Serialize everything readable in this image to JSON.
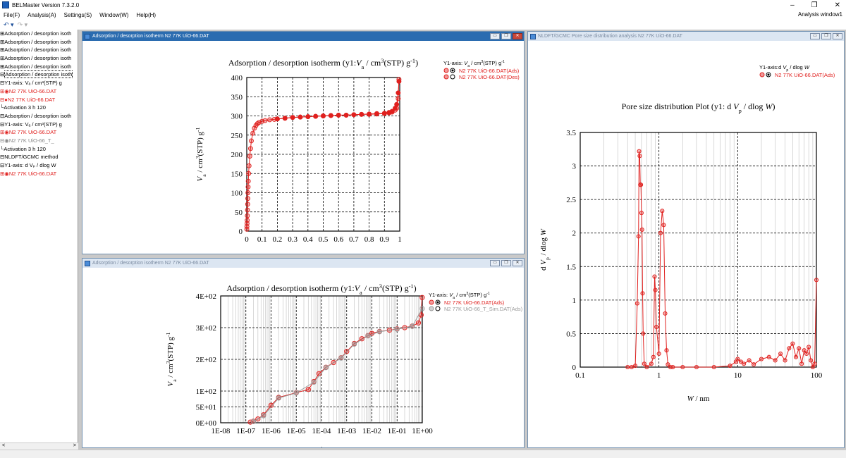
{
  "app": {
    "title": "BELMaster Version 7.3.2.0",
    "window_label": "Analysis window1",
    "window_controls": [
      "–",
      "❐",
      "✕"
    ]
  },
  "menu": [
    "File(F)",
    "Analysis(A)",
    "Settings(S)",
    "Window(W)",
    "Help(H)"
  ],
  "toolbar": {
    "undo": "↶ ▾",
    "redo": "↷ ▾"
  },
  "tree": [
    {
      "t": "Adsorption / desorption isoth",
      "pre": "⊞",
      "c": ""
    },
    {
      "t": "Adsorption / desorption isoth",
      "pre": "⊞",
      "c": ""
    },
    {
      "t": "Adsorption / desorption isoth",
      "pre": "⊞",
      "c": ""
    },
    {
      "t": "Adsorption / desorption isoth",
      "pre": "⊞",
      "c": ""
    },
    {
      "t": "Adsorption / desorption isoth",
      "pre": "⊞",
      "c": ""
    },
    {
      "t": "Adsorption / desorption isoth",
      "pre": "⊟",
      "c": "selected"
    },
    {
      "t": "Y1-axis: Vₐ / cm³(STP) g",
      "pre": " ⊟",
      "c": ""
    },
    {
      "t": "N2 77K UiO-66.DAT",
      "pre": "   ⊞◉",
      "c": "red"
    },
    {
      "t": "N2 77K UiO-66.DAT",
      "pre": "   ⊟●",
      "c": "red"
    },
    {
      "t": "Activation 3 h 120",
      "pre": "     └",
      "c": ""
    },
    {
      "t": "Adsorption / desorption isoth",
      "pre": "⊟",
      "c": ""
    },
    {
      "t": "Y1-axis: Vₐ / cm³(STP) g",
      "pre": " ⊟",
      "c": ""
    },
    {
      "t": "N2 77K UiO-66.DAT",
      "pre": "   ⊞◉",
      "c": "red"
    },
    {
      "t": "N2 77K UiO-66_T_",
      "pre": "   ⊟◉",
      "c": "gray"
    },
    {
      "t": "Activation 3 h 120",
      "pre": "     └",
      "c": ""
    },
    {
      "t": "NLDFT/GCMC method",
      "pre": "⊟",
      "c": ""
    },
    {
      "t": "Y1-axis: d Vₚ / dlog W",
      "pre": " ⊟",
      "c": ""
    },
    {
      "t": "N2 77K UiO-66.DAT",
      "pre": "   ⊞◉",
      "c": "red"
    }
  ],
  "tree_scroll": {
    "left": "<",
    "right": ">"
  },
  "windows": {
    "w1": {
      "title": "Adsorption / desorption isotherm N2 77K UiO-66.DAT"
    },
    "w2": {
      "title": "Adsorption / desorption isotherm N2 77K UiO-66.DAT"
    },
    "w3": {
      "title": "NLDFT/GCMC Pore size distribution analysis N2 77K UiO-66.DAT"
    },
    "buttons": [
      "▭",
      "❐",
      "✕"
    ]
  },
  "colors": {
    "series_red": "#e0201e",
    "series_gray": "#9a9a9a",
    "title_active": "#2b6cb0"
  },
  "chart_data": [
    {
      "type": "scatter",
      "title": "Adsorption / desorption isotherm (y1: Va / cm3(STP) g-1)",
      "title_parts": [
        "Adsorption / desorption isotherm (y1:",
        "V",
        "a",
        " / cm",
        "3",
        "(STP) g",
        "-1",
        ")"
      ],
      "xlabel": "p / p0",
      "xlabel_parts": [
        "p",
        " /",
        "p",
        "0"
      ],
      "ylabel": "Va / cm3(STP) g-1",
      "ylabel_parts": [
        "V",
        "a",
        " / cm",
        "3",
        "(STP) g",
        "-1"
      ],
      "xlim": [
        0,
        1
      ],
      "ylim": [
        0,
        400
      ],
      "grid": true,
      "legend": "top-right",
      "x_ticks": [
        "0",
        "0.1",
        "0.2",
        "0.3",
        "0.4",
        "0.5",
        "0.6",
        "0.7",
        "0.8",
        "0.9",
        "1"
      ],
      "y_ticks": [
        "0",
        "50",
        "100",
        "150",
        "200",
        "250",
        "300",
        "350",
        "400"
      ],
      "legend_title": [
        "Y1-axis: ",
        "V",
        "a",
        " / cm",
        "3",
        "(STP) g",
        "-1"
      ],
      "series": [
        {
          "name": "N2 77K UiO-66.DAT(Ads)",
          "marker": "open",
          "x": [
            0.0005,
            0.001,
            0.002,
            0.003,
            0.004,
            0.005,
            0.006,
            0.007,
            0.008,
            0.009,
            0.01,
            0.012,
            0.015,
            0.02,
            0.025,
            0.03,
            0.04,
            0.05,
            0.06,
            0.07,
            0.08,
            0.1,
            0.12,
            0.15,
            0.18,
            0.2,
            0.25,
            0.3,
            0.35,
            0.4,
            0.45,
            0.5,
            0.55,
            0.6,
            0.65,
            0.7,
            0.75,
            0.8,
            0.85,
            0.9,
            0.93,
            0.95,
            0.97,
            0.98,
            0.99,
            0.995
          ],
          "y": [
            5,
            12,
            20,
            28,
            40,
            55,
            70,
            85,
            100,
            115,
            130,
            150,
            170,
            195,
            215,
            235,
            255,
            268,
            275,
            280,
            283,
            286,
            288,
            290,
            291,
            292,
            294,
            296,
            297,
            298,
            299,
            300,
            301,
            302,
            302,
            303,
            304,
            304,
            305,
            306,
            308,
            310,
            315,
            320,
            345,
            395
          ]
        },
        {
          "name": "N2 77K UiO-66.DAT(Des)",
          "marker": "filled",
          "x": [
            0.995,
            0.99,
            0.98,
            0.97,
            0.95,
            0.93,
            0.9,
            0.85,
            0.8,
            0.75,
            0.7,
            0.65,
            0.6,
            0.55,
            0.5,
            0.45,
            0.4,
            0.35,
            0.3,
            0.25,
            0.2
          ],
          "y": [
            390,
            360,
            330,
            320,
            312,
            309,
            307,
            306,
            305,
            304,
            303,
            302,
            302,
            301,
            300,
            299,
            298,
            297,
            296,
            294,
            292
          ]
        }
      ]
    },
    {
      "type": "scatter",
      "title": "Adsorption / desorption isotherm (y1: Va / cm3(STP) g-1)",
      "title_parts": [
        "Adsorption / desorption isotherm (y1:",
        "V",
        "a",
        " / cm",
        "3",
        "(STP) g",
        "-1",
        ")"
      ],
      "xlabel": "p / p0",
      "xlabel_parts": [
        "p",
        " /",
        "p",
        "0"
      ],
      "ylabel": "Va / cm3(STP) g-1",
      "ylabel_parts": [
        "V",
        "a",
        " / cm",
        "3",
        "(STP) g",
        "-1"
      ],
      "x_scale": "log",
      "x_exp_range": [
        -8,
        0
      ],
      "ylim": [
        0,
        400
      ],
      "grid": true,
      "legend": "top-right",
      "x_ticks": [
        "1E-08",
        "1E-07",
        "1E-06",
        "1E-05",
        "1E-04",
        "1E-03",
        "1E-02",
        "1E-01",
        "1E+00"
      ],
      "y_ticks": [
        "0E+00",
        "5E+01",
        "1E+02",
        "2E+02",
        "3E+02",
        "4E+02"
      ],
      "legend_title": [
        "Y1-axis: ",
        "V",
        "a",
        " / cm",
        "3",
        "(STP) g",
        "-1"
      ],
      "series": [
        {
          "name": "N2 77K UiO-66.DAT(Ads)",
          "color": "red",
          "x": [
            1.5e-07,
            2e-07,
            3e-07,
            5e-07,
            1e-06,
            2e-06,
            1e-05,
            3e-05,
            5e-05,
            8e-05,
            0.00015,
            0.0003,
            0.0006,
            0.001,
            0.002,
            0.004,
            0.007,
            0.01,
            0.02,
            0.05,
            0.1,
            0.2,
            0.4,
            0.7,
            0.9,
            0.99
          ],
          "y": [
            2,
            5,
            12,
            25,
            55,
            80,
            95,
            105,
            130,
            155,
            175,
            190,
            205,
            225,
            250,
            265,
            275,
            282,
            288,
            292,
            296,
            300,
            305,
            315,
            340,
            395
          ]
        },
        {
          "name": "N2 77K UiO-66_T_Sim.DAT(Ads)",
          "color": "gray",
          "x": [
            2e-07,
            5e-07,
            2e-06,
            1e-05,
            5e-05,
            0.00015,
            0.0006,
            0.002,
            0.007,
            0.02,
            0.1,
            0.4,
            0.99
          ],
          "y": [
            4,
            22,
            78,
            94,
            128,
            174,
            204,
            248,
            274,
            287,
            295,
            304,
            360
          ]
        }
      ]
    },
    {
      "type": "line",
      "title": "Pore size distribution Plot (y1: d Vp / dlog W)",
      "title_parts": [
        "Pore size distribution Plot (y1: d ",
        "V",
        "p",
        " / dlog ",
        "W",
        ")"
      ],
      "xlabel": "W / nm",
      "xlabel_parts": [
        "W",
        " / nm"
      ],
      "ylabel": "d Vp / dlog W",
      "ylabel_parts": [
        "d ",
        "V",
        "p",
        " / dlog ",
        "W"
      ],
      "x_scale": "log",
      "x_exp_range": [
        -1,
        2
      ],
      "ylim": [
        0,
        3.5
      ],
      "grid": true,
      "legend": "top-right",
      "x_ticks": [
        "0.1",
        "1",
        "10",
        "100"
      ],
      "y_ticks": [
        "0",
        "0.5",
        "1",
        "1.5",
        "2",
        "2.5",
        "3",
        "3.5"
      ],
      "legend_title": [
        "Y1-axis:d ",
        "V",
        "p",
        " / dlog ",
        "W"
      ],
      "series": [
        {
          "name": "N2 77K UiO-66.DAT(Ads)",
          "x": [
            0.4,
            0.45,
            0.5,
            0.53,
            0.55,
            0.56,
            0.57,
            0.58,
            0.59,
            0.6,
            0.61,
            0.62,
            0.63,
            0.65,
            0.7,
            0.8,
            0.85,
            0.88,
            0.9,
            0.93,
            1.0,
            1.05,
            1.1,
            1.15,
            1.2,
            1.25,
            1.3,
            1.4,
            1.5,
            2,
            3,
            5,
            8,
            9.5,
            10,
            11,
            12,
            14,
            16,
            20,
            25,
            30,
            35,
            40,
            45,
            50,
            55,
            60,
            65,
            70,
            75,
            80,
            85,
            90,
            95,
            100
          ],
          "y": [
            0,
            0,
            0.02,
            0.95,
            1.95,
            3.22,
            3.15,
            2.72,
            2.72,
            2.3,
            2.05,
            1.1,
            0.5,
            0.05,
            0.0,
            0.05,
            0.15,
            1.35,
            1.15,
            0.6,
            0.2,
            2.0,
            2.33,
            2.12,
            0.8,
            0.25,
            0.04,
            0.0,
            0.0,
            0.0,
            0.0,
            0.0,
            0.02,
            0.08,
            0.12,
            0.08,
            0.05,
            0.1,
            0.04,
            0.12,
            0.15,
            0.1,
            0.2,
            0.1,
            0.28,
            0.35,
            0.15,
            0.28,
            0.05,
            0.25,
            0.2,
            0.3,
            0.1,
            0.0,
            0.05,
            1.3
          ]
        }
      ]
    }
  ]
}
